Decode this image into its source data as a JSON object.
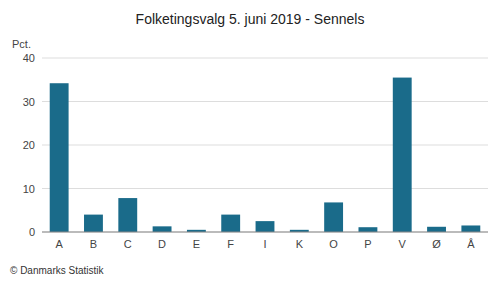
{
  "chart_data": {
    "type": "bar",
    "title": "Folketingsvalg 5. juni 2019 - Sennels",
    "categories": [
      "A",
      "B",
      "C",
      "D",
      "E",
      "F",
      "I",
      "K",
      "O",
      "P",
      "V",
      "Ø",
      "Å"
    ],
    "values": [
      34.2,
      4.0,
      7.8,
      1.3,
      0.5,
      4.0,
      2.5,
      0.5,
      6.8,
      1.1,
      35.5,
      1.2,
      1.5
    ],
    "color": "#1a6b8a",
    "ylabel": "Pct.",
    "ylim": [
      0,
      40
    ],
    "yticks": [
      0,
      10,
      20,
      30,
      40
    ],
    "grid": true,
    "annotations": [
      "© Danmarks Statistik"
    ]
  }
}
